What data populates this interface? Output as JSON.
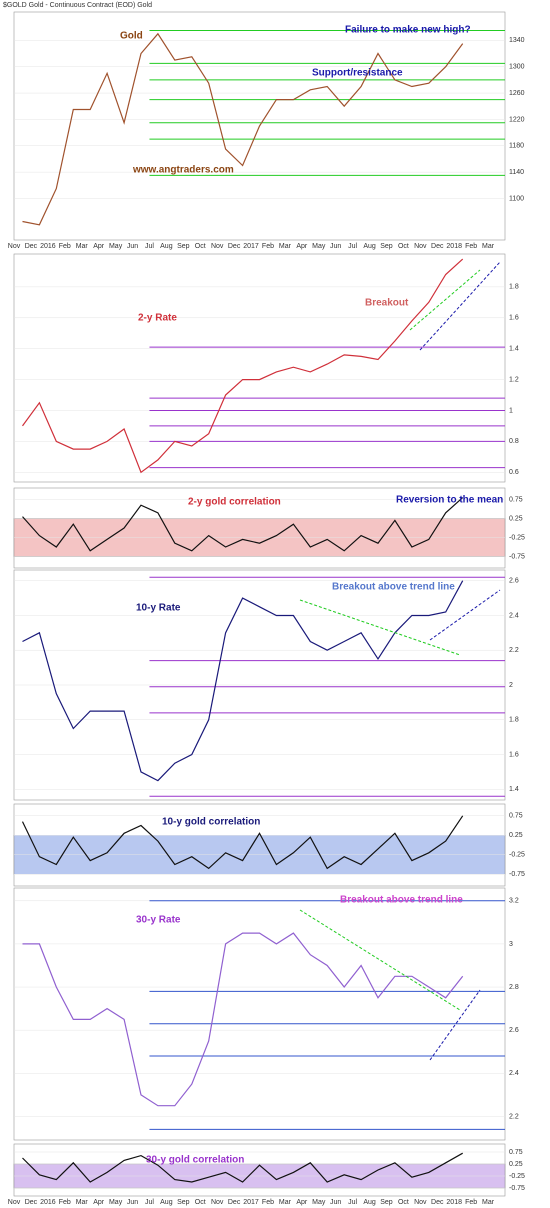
{
  "chart_data": [
    {
      "type": "line",
      "title": "$GOLD Gold - Continuous Contract (EOD) Gold",
      "annotations": [
        "Gold",
        "Failure to make new high?",
        "Support/resistance",
        "www.angtraders.com"
      ],
      "categories": [
        "Nov",
        "Dec",
        "2016",
        "Feb",
        "Mar",
        "Apr",
        "May",
        "Jun",
        "Jul",
        "Aug",
        "Sep",
        "Oct",
        "Nov",
        "Dec",
        "2017",
        "Feb",
        "Mar",
        "Apr",
        "May",
        "Jun",
        "Jul",
        "Aug",
        "Sep",
        "Oct",
        "Nov",
        "Dec",
        "2018",
        "Feb",
        "Mar"
      ],
      "values": [
        1065,
        1060,
        1115,
        1235,
        1235,
        1290,
        1215,
        1320,
        1350,
        1310,
        1315,
        1275,
        1175,
        1150,
        1210,
        1250,
        1250,
        1265,
        1270,
        1240,
        1270,
        1320,
        1280,
        1270,
        1275,
        1300,
        1335,
        null,
        null
      ],
      "color": "#a0522d",
      "ylim": [
        1040,
        1380
      ],
      "yticks": [
        1100,
        1140,
        1180,
        1220,
        1260,
        1300,
        1340
      ],
      "hlines": [
        1355,
        1305,
        1280,
        1250,
        1215,
        1190,
        1135
      ],
      "hline_color": "#22cc22"
    },
    {
      "type": "line",
      "annotations": [
        "2-y Rate",
        "Breakout"
      ],
      "values": [
        0.9,
        1.05,
        0.8,
        0.75,
        0.75,
        0.8,
        0.88,
        0.6,
        0.68,
        0.8,
        0.77,
        0.85,
        1.1,
        1.2,
        1.2,
        1.25,
        1.28,
        1.25,
        1.3,
        1.36,
        1.35,
        1.33,
        1.45,
        1.58,
        1.7,
        1.88,
        1.98,
        null,
        null
      ],
      "color": "#d0303a",
      "ylim": [
        0.55,
        2.0
      ],
      "yticks": [
        0.6,
        0.8,
        1,
        1.2,
        1.4,
        1.6,
        1.8
      ],
      "hlines": [
        1.41,
        1.08,
        1,
        0.9,
        0.8,
        0.63
      ],
      "hline_color": "#9933cc"
    },
    {
      "type": "band-line",
      "annotations": [
        "2-y gold correlation",
        "Reversion to the mean"
      ],
      "values": [
        0.3,
        -0.2,
        -0.5,
        0.1,
        -0.6,
        -0.3,
        0,
        0.6,
        0.4,
        -0.4,
        -0.6,
        -0.2,
        -0.5,
        -0.3,
        -0.4,
        -0.2,
        0.1,
        -0.5,
        -0.3,
        -0.6,
        -0.2,
        -0.4,
        0.2,
        -0.5,
        -0.3,
        0.4,
        0.8,
        null,
        null
      ],
      "color": "#111111",
      "band": [
        -0.75,
        0.25
      ],
      "band_color": "#f4c4c4",
      "ylim": [
        -1,
        1
      ],
      "yticks": [
        -0.75,
        -0.25,
        0.25,
        0.75
      ]
    },
    {
      "type": "line",
      "annotations": [
        "10-y Rate",
        "Breakout above trend line"
      ],
      "values": [
        2.25,
        2.3,
        1.95,
        1.75,
        1.85,
        1.85,
        1.85,
        1.5,
        1.45,
        1.55,
        1.6,
        1.8,
        2.3,
        2.5,
        2.45,
        2.4,
        2.4,
        2.25,
        2.2,
        2.25,
        2.3,
        2.15,
        2.3,
        2.4,
        2.4,
        2.42,
        2.6,
        null,
        null
      ],
      "color": "#1a1a7a",
      "ylim": [
        1.35,
        2.65
      ],
      "yticks": [
        1.4,
        1.6,
        1.8,
        2,
        2.2,
        2.4,
        2.6
      ],
      "hlines": [
        2.62,
        2.14,
        1.99,
        1.84,
        1.36
      ],
      "hline_color": "#9933cc"
    },
    {
      "type": "band-line",
      "annotations": [
        "10-y gold correlation"
      ],
      "values": [
        0.6,
        -0.3,
        -0.5,
        0.2,
        -0.4,
        -0.2,
        0.3,
        0.5,
        0.1,
        -0.5,
        -0.3,
        -0.6,
        -0.2,
        -0.4,
        0.3,
        -0.5,
        -0.2,
        0.2,
        -0.6,
        -0.3,
        -0.5,
        -0.1,
        0.3,
        -0.4,
        -0.2,
        0.1,
        0.75,
        null,
        null
      ],
      "color": "#111111",
      "band": [
        -0.75,
        0.25
      ],
      "band_color": "#b8c8f0",
      "ylim": [
        -1,
        1
      ],
      "yticks": [
        -0.75,
        -0.25,
        0.25,
        0.75
      ]
    },
    {
      "type": "line",
      "annotations": [
        "30-y Rate",
        "Breakout above trend line"
      ],
      "values": [
        3,
        3,
        2.8,
        2.65,
        2.65,
        2.7,
        2.65,
        2.3,
        2.25,
        2.25,
        2.35,
        2.55,
        3,
        3.05,
        3.05,
        3,
        3.05,
        2.95,
        2.9,
        2.8,
        2.9,
        2.75,
        2.85,
        2.85,
        2.8,
        2.75,
        2.85,
        null,
        null
      ],
      "color": "#9060d0",
      "ylim": [
        2.1,
        3.25
      ],
      "yticks": [
        2.2,
        2.4,
        2.6,
        2.8,
        3,
        3.2
      ],
      "hlines": [
        3.2,
        2.78,
        2.63,
        2.48,
        2.14
      ],
      "hline_color": "#3355cc"
    },
    {
      "type": "band-line",
      "annotations": [
        "30-y gold correlation"
      ],
      "categories": [
        "Nov",
        "Dec",
        "2016",
        "Feb",
        "Mar",
        "Apr",
        "May",
        "Jun",
        "Jul",
        "Aug",
        "Sep",
        "Oct",
        "Nov",
        "Dec",
        "2017",
        "Feb",
        "Mar",
        "Apr",
        "May",
        "Jun",
        "Jul",
        "Aug",
        "Sep",
        "Oct",
        "Nov",
        "Dec",
        "2018",
        "Feb",
        "Mar"
      ],
      "values": [
        0.5,
        -0.2,
        -0.4,
        0.3,
        -0.5,
        -0.1,
        0.4,
        0.6,
        0.2,
        -0.4,
        -0.5,
        -0.3,
        -0.1,
        -0.5,
        0.2,
        -0.4,
        -0.1,
        0.3,
        -0.5,
        -0.2,
        -0.4,
        0,
        0.3,
        -0.3,
        -0.1,
        0.3,
        0.7,
        null,
        null
      ],
      "color": "#111111",
      "band": [
        -0.75,
        0.25
      ],
      "band_color": "#d8c0f0",
      "ylim": [
        -1,
        1
      ],
      "yticks": [
        -0.75,
        -0.25,
        0.25,
        0.75
      ]
    }
  ]
}
